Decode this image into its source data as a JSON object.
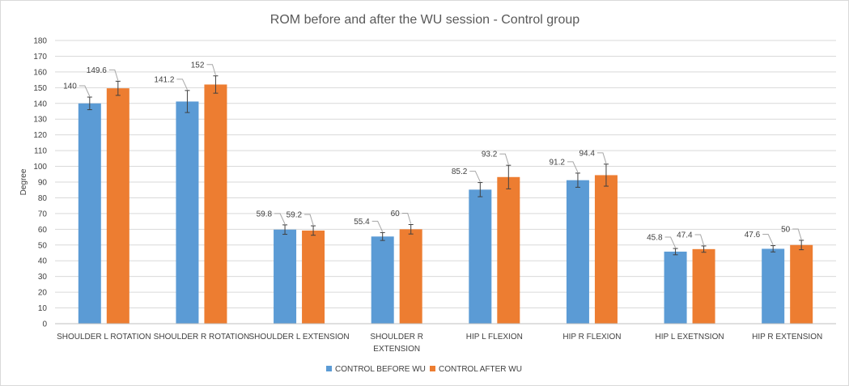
{
  "chart_data": {
    "type": "bar",
    "title": "ROM before and after the WU session - Control group",
    "xlabel": "",
    "ylabel": "Degree",
    "ylim": [
      0,
      180
    ],
    "ytick_step": 10,
    "grid": true,
    "legend_position": "bottom",
    "categories": [
      [
        "SHOULDER L ROTATION"
      ],
      [
        "SHOULDER R ROTATION"
      ],
      [
        "SHOULDER L EXTENSION"
      ],
      [
        "SHOULDER R",
        "EXTENSION"
      ],
      [
        "HIP L FLEXION"
      ],
      [
        "HIP R FLEXION"
      ],
      [
        "HIP L EXETNSION"
      ],
      [
        "HIP R EXTENSION"
      ]
    ],
    "series": [
      {
        "name": "CONTROL BEFORE WU",
        "color": "#5b9bd5",
        "values": [
          140,
          141.2,
          59.8,
          55.4,
          85.2,
          91.2,
          45.8,
          47.6
        ],
        "errors": [
          4,
          7,
          3,
          2.5,
          4.5,
          4.5,
          2,
          2
        ],
        "labels": [
          "140",
          "141.2",
          "59.8",
          "55.4",
          "85.2",
          "91.2",
          "45.8",
          "47.6"
        ]
      },
      {
        "name": "CONTROL AFTER WU",
        "color": "#ed7d31",
        "values": [
          149.6,
          152,
          59.2,
          60,
          93.2,
          94.4,
          47.4,
          50
        ],
        "errors": [
          4.5,
          5.5,
          3,
          3,
          7.5,
          7,
          2,
          3
        ],
        "labels": [
          "149.6",
          "152",
          "59.2",
          "60",
          "93.2",
          "94.4",
          "47.4",
          "50"
        ]
      }
    ]
  }
}
